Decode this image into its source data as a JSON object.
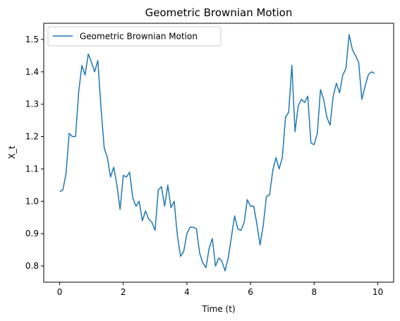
{
  "chart_data": {
    "type": "line",
    "title": "Geometric Brownian Motion",
    "xlabel": "Time (t)",
    "ylabel": "X_t",
    "xlim": [
      -0.5,
      10.5
    ],
    "ylim": [
      0.75,
      1.55
    ],
    "xticks": [
      0,
      2,
      4,
      6,
      8,
      10
    ],
    "yticks": [
      0.8,
      0.9,
      1.0,
      1.1,
      1.2,
      1.3,
      1.4,
      1.5
    ],
    "xtick_labels": [
      "0",
      "2",
      "4",
      "6",
      "8",
      "10"
    ],
    "ytick_labels": [
      "0.8",
      "0.9",
      "1.0",
      "1.1",
      "1.2",
      "1.3",
      "1.4",
      "1.5"
    ],
    "grid": false,
    "legend_position": "top-left",
    "series": [
      {
        "name": "Geometric Brownian Motion",
        "color": "#1f77b4",
        "x": [
          0.0,
          0.1,
          0.2,
          0.3,
          0.4,
          0.5,
          0.6,
          0.7,
          0.8,
          0.9,
          1.0,
          1.1,
          1.2,
          1.3,
          1.4,
          1.5,
          1.6,
          1.7,
          1.8,
          1.9,
          2.0,
          2.1,
          2.2,
          2.3,
          2.4,
          2.5,
          2.6,
          2.7,
          2.8,
          2.9,
          3.0,
          3.1,
          3.2,
          3.3,
          3.4,
          3.5,
          3.6,
          3.7,
          3.8,
          3.9,
          4.0,
          4.1,
          4.2,
          4.3,
          4.4,
          4.5,
          4.6,
          4.7,
          4.8,
          4.9,
          5.0,
          5.1,
          5.2,
          5.3,
          5.4,
          5.5,
          5.6,
          5.7,
          5.8,
          5.9,
          6.0,
          6.1,
          6.2,
          6.3,
          6.4,
          6.5,
          6.6,
          6.7,
          6.8,
          6.9,
          7.0,
          7.1,
          7.2,
          7.3,
          7.4,
          7.5,
          7.6,
          7.7,
          7.8,
          7.9,
          8.0,
          8.1,
          8.2,
          8.3,
          8.4,
          8.5,
          8.6,
          8.7,
          8.8,
          8.9,
          9.0,
          9.1,
          9.2,
          9.3,
          9.4,
          9.5,
          9.6,
          9.7,
          9.8,
          9.9
        ],
        "values": [
          1.03,
          1.035,
          1.085,
          1.21,
          1.2,
          1.2,
          1.34,
          1.42,
          1.39,
          1.455,
          1.43,
          1.4,
          1.435,
          1.29,
          1.165,
          1.135,
          1.075,
          1.105,
          1.05,
          0.975,
          1.08,
          1.075,
          1.09,
          1.01,
          0.985,
          1.0,
          0.94,
          0.97,
          0.945,
          0.935,
          0.91,
          1.035,
          1.045,
          0.985,
          1.05,
          0.98,
          1.0,
          0.895,
          0.83,
          0.845,
          0.9,
          0.92,
          0.92,
          0.915,
          0.84,
          0.81,
          0.795,
          0.855,
          0.885,
          0.8,
          0.825,
          0.815,
          0.785,
          0.825,
          0.89,
          0.955,
          0.915,
          0.91,
          0.935,
          1.005,
          0.985,
          0.985,
          0.93,
          0.865,
          0.925,
          1.015,
          1.02,
          1.095,
          1.135,
          1.1,
          1.135,
          1.26,
          1.275,
          1.42,
          1.215,
          1.295,
          1.315,
          1.305,
          1.325,
          1.18,
          1.175,
          1.21,
          1.345,
          1.315,
          1.26,
          1.235,
          1.325,
          1.365,
          1.335,
          1.39,
          1.41,
          1.515,
          1.47,
          1.45,
          1.43,
          1.315,
          1.355,
          1.39,
          1.4,
          1.395
        ]
      }
    ]
  }
}
